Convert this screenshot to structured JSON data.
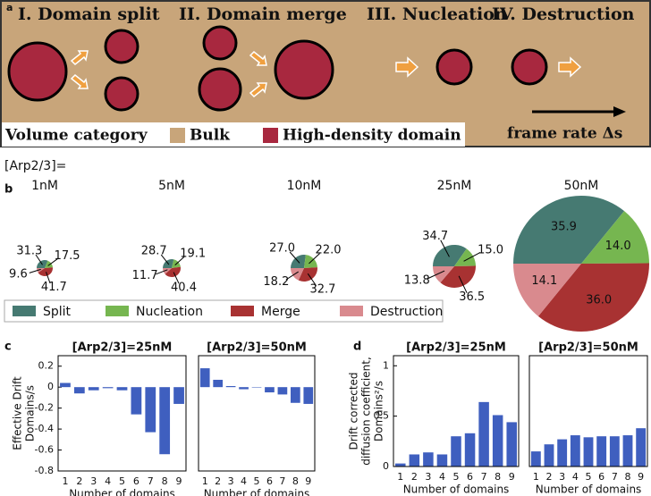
{
  "panel_a": {
    "label": "a",
    "headings": [
      "I. Domain split",
      "II. Domain merge",
      "III. Nucleation",
      "IV. Destruction"
    ],
    "legend_title": "Volume category",
    "legend": [
      {
        "name": "Bulk",
        "color": "#c8a57a"
      },
      {
        "name": "High-density domain",
        "color": "#a8283f"
      }
    ],
    "arrow_label": "frame rate Δs"
  },
  "chart_data": [
    {
      "type": "pie",
      "panel_label": "b",
      "label": "[Arp2/3]=",
      "categories": [
        "Split",
        "Nucleation",
        "Merge",
        "Destruction"
      ],
      "colors": [
        "#467a72",
        "#76b650",
        "#a83232",
        "#d98a8e"
      ],
      "pies": [
        {
          "title": "1nM",
          "values": [
            31.3,
            17.5,
            41.7,
            9.6
          ],
          "value_labels": [
            "31.3",
            "17.5",
            "41.7",
            "9.6"
          ]
        },
        {
          "title": "5nM",
          "values": [
            28.7,
            19.1,
            40.4,
            11.7
          ],
          "value_labels": [
            "28.7",
            "19.1",
            "40.4",
            "11.7"
          ]
        },
        {
          "title": "10nM",
          "values": [
            27.0,
            22.0,
            32.7,
            18.2
          ],
          "value_labels": [
            "27.0",
            "22.0",
            "32.7",
            "18.2"
          ]
        },
        {
          "title": "25nM",
          "values": [
            34.7,
            15.0,
            36.5,
            13.8
          ],
          "value_labels": [
            "34.7",
            "15.0",
            "36.5",
            "13.8"
          ]
        },
        {
          "title": "50nM",
          "values": [
            35.9,
            14.0,
            36.0,
            14.1
          ],
          "value_labels": [
            "35.9",
            "14.0",
            "36.0",
            "14.1"
          ]
        }
      ]
    },
    {
      "type": "bar",
      "panel_label": "c",
      "title": "[Arp2/3]=25nM",
      "ylabel": [
        "Effective Drift",
        "Domains/s"
      ],
      "xlabel": "Number of domains",
      "categories": [
        "1",
        "2",
        "3",
        "4",
        "5",
        "6",
        "7",
        "8",
        "9"
      ],
      "values": [
        0.04,
        -0.06,
        -0.03,
        -0.01,
        -0.03,
        -0.26,
        -0.43,
        -0.64,
        -0.16
      ],
      "color": "#3f5fbf",
      "ylim": [
        -0.8,
        0.3
      ],
      "yticks": [
        0.2,
        0,
        -0.2,
        -0.4,
        -0.6,
        -0.8
      ]
    },
    {
      "type": "bar",
      "title": "[Arp2/3]=50nM",
      "xlabel": "Number of domains",
      "categories": [
        "1",
        "2",
        "3",
        "4",
        "5",
        "6",
        "7",
        "8",
        "9"
      ],
      "values": [
        0.18,
        0.07,
        0.01,
        -0.02,
        0,
        -0.05,
        -0.07,
        -0.15,
        -0.16
      ],
      "color": "#3f5fbf",
      "ylim": [
        -0.8,
        0.3
      ]
    },
    {
      "type": "bar",
      "panel_label": "d",
      "title": "[Arp2/3]=25nM",
      "ylabel": [
        "Drift corrected",
        "diffusion coefficient,",
        "Domains²/s"
      ],
      "xlabel": "Number of domains",
      "categories": [
        "1",
        "2",
        "3",
        "4",
        "5",
        "6",
        "7",
        "8",
        "9"
      ],
      "values": [
        0.03,
        0.12,
        0.14,
        0.12,
        0.3,
        0.33,
        0.64,
        0.51,
        0.44
      ],
      "color": "#3f5fbf",
      "ylim": [
        0,
        1.1
      ],
      "yticks": [
        0,
        0.5,
        1
      ]
    },
    {
      "type": "bar",
      "title": "[Arp2/3]=50nM",
      "xlabel": "Number of domains",
      "categories": [
        "1",
        "2",
        "3",
        "4",
        "5",
        "6",
        "7",
        "8",
        "9"
      ],
      "values": [
        0.15,
        0.22,
        0.27,
        0.31,
        0.29,
        0.3,
        0.3,
        0.31,
        0.38
      ],
      "color": "#3f5fbf",
      "ylim": [
        0,
        1.1
      ]
    }
  ]
}
